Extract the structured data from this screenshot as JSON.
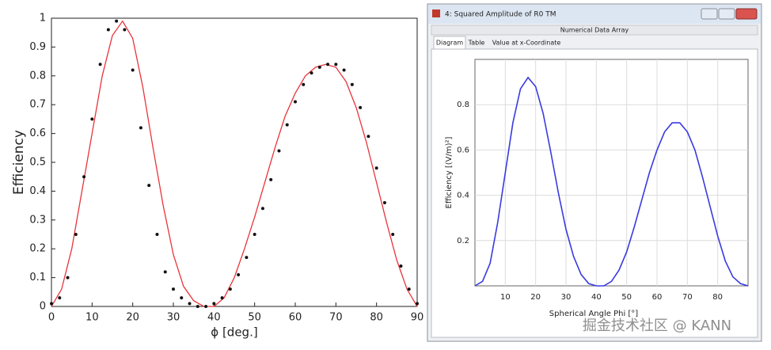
{
  "window": {
    "title": "4: Squared Amplitude of R0 TM",
    "subtitle": "Numerical Data Array",
    "tabs": [
      "Diagram",
      "Table",
      "Value at x-Coordinate"
    ]
  },
  "watermark": "掘金技术社区 @ KANN",
  "chart_data": [
    {
      "type": "line",
      "xlabel": "ϕ [deg.]",
      "ylabel": "Efficiency",
      "xlim": [
        0,
        90
      ],
      "ylim": [
        0,
        1
      ],
      "xticks": [
        0,
        10,
        20,
        30,
        40,
        50,
        60,
        70,
        80,
        90
      ],
      "yticks": [
        0,
        0.1,
        0.2,
        0.3,
        0.4,
        0.5,
        0.6,
        0.7,
        0.8,
        0.9,
        1
      ],
      "grid": false,
      "series": [
        {
          "type": "line",
          "color": "#e8343a",
          "x": [
            0,
            2.5,
            5,
            7.5,
            10,
            12.5,
            15,
            17.5,
            20,
            22.5,
            25,
            27.5,
            30,
            32.5,
            35,
            37.5,
            40,
            42.5,
            45,
            47.5,
            50,
            52.5,
            55,
            57.5,
            60,
            62.5,
            65,
            67.5,
            70,
            72.5,
            75,
            77.5,
            80,
            82.5,
            85,
            87.5,
            90
          ],
          "values": [
            0,
            0.06,
            0.2,
            0.4,
            0.6,
            0.8,
            0.94,
            0.99,
            0.93,
            0.76,
            0.55,
            0.35,
            0.18,
            0.07,
            0.02,
            0,
            0,
            0.03,
            0.1,
            0.2,
            0.31,
            0.43,
            0.55,
            0.66,
            0.74,
            0.8,
            0.83,
            0.84,
            0.83,
            0.78,
            0.69,
            0.57,
            0.43,
            0.29,
            0.16,
            0.06,
            0
          ]
        },
        {
          "type": "scatter",
          "color": "#111111",
          "x": [
            0,
            2,
            4,
            6,
            8,
            10,
            12,
            14,
            16,
            18,
            20,
            22,
            24,
            26,
            28,
            30,
            32,
            34,
            36,
            38,
            40,
            42,
            44,
            46,
            48,
            50,
            52,
            54,
            56,
            58,
            60,
            62,
            64,
            66,
            68,
            70,
            72,
            74,
            76,
            78,
            80,
            82,
            84,
            86,
            88,
            90
          ],
          "values": [
            0.01,
            0.03,
            0.1,
            0.25,
            0.45,
            0.65,
            0.84,
            0.96,
            0.99,
            0.96,
            0.82,
            0.62,
            0.42,
            0.25,
            0.12,
            0.06,
            0.03,
            0.01,
            0,
            0,
            0.01,
            0.03,
            0.06,
            0.11,
            0.17,
            0.25,
            0.34,
            0.44,
            0.54,
            0.63,
            0.71,
            0.77,
            0.81,
            0.83,
            0.84,
            0.84,
            0.82,
            0.77,
            0.69,
            0.59,
            0.48,
            0.36,
            0.25,
            0.14,
            0.06,
            0.01
          ]
        }
      ]
    },
    {
      "type": "line",
      "xlabel": "Spherical Angle Phi [°]",
      "ylabel": "Efficiency [(V/m)²]",
      "xlim": [
        0,
        90
      ],
      "ylim": [
        0,
        1
      ],
      "xticks": [
        10,
        20,
        30,
        40,
        50,
        60,
        70,
        80
      ],
      "yticks": [
        0.2,
        0.4,
        0.6,
        0.8
      ],
      "grid": true,
      "series": [
        {
          "type": "line",
          "color": "#3a3ae0",
          "x": [
            0,
            2.5,
            5,
            7.5,
            10,
            12.5,
            15,
            17.5,
            20,
            22.5,
            25,
            27.5,
            30,
            32.5,
            35,
            37.5,
            40,
            42.5,
            45,
            47.5,
            50,
            52.5,
            55,
            57.5,
            60,
            62.5,
            65,
            67.5,
            70,
            72.5,
            75,
            77.5,
            80,
            82.5,
            85,
            87.5,
            90
          ],
          "values": [
            0,
            0.02,
            0.1,
            0.28,
            0.5,
            0.72,
            0.87,
            0.92,
            0.88,
            0.76,
            0.59,
            0.41,
            0.25,
            0.13,
            0.05,
            0.01,
            0,
            0,
            0.02,
            0.07,
            0.15,
            0.26,
            0.38,
            0.5,
            0.6,
            0.68,
            0.72,
            0.72,
            0.68,
            0.6,
            0.48,
            0.35,
            0.22,
            0.11,
            0.04,
            0.01,
            0
          ]
        }
      ]
    }
  ]
}
